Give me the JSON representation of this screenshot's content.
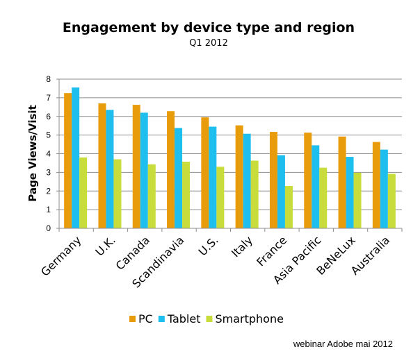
{
  "chart_data": {
    "type": "bar",
    "title": "Engagement by device type and region",
    "subtitle": "Q1 2012",
    "xlabel": "",
    "ylabel": "Page Views/Visit",
    "ylim": [
      0,
      8
    ],
    "yticks": [
      0,
      1,
      2,
      3,
      4,
      5,
      6,
      7,
      8
    ],
    "grid": true,
    "legend": "bottom",
    "categories": [
      "Germany",
      "U.K.",
      "Canada",
      "Scandinavia",
      "U.S.",
      "Italy",
      "France",
      "Asia Pacific",
      "BeNeLux",
      "Australia"
    ],
    "series": [
      {
        "name": "PC",
        "color": "#e89c0c",
        "values": [
          7.25,
          6.7,
          6.62,
          6.28,
          5.95,
          5.52,
          5.17,
          5.13,
          4.92,
          4.63
        ]
      },
      {
        "name": "Tablet",
        "color": "#1ebfef",
        "values": [
          7.55,
          6.35,
          6.2,
          5.38,
          5.45,
          5.07,
          3.92,
          4.45,
          3.83,
          4.22
        ]
      },
      {
        "name": "Smartphone",
        "color": "#c8dc3c",
        "values": [
          3.8,
          3.7,
          3.43,
          3.57,
          3.3,
          3.63,
          2.27,
          3.25,
          2.98,
          2.92
        ]
      }
    ]
  },
  "footer": "webinar Adobe mai 2012"
}
